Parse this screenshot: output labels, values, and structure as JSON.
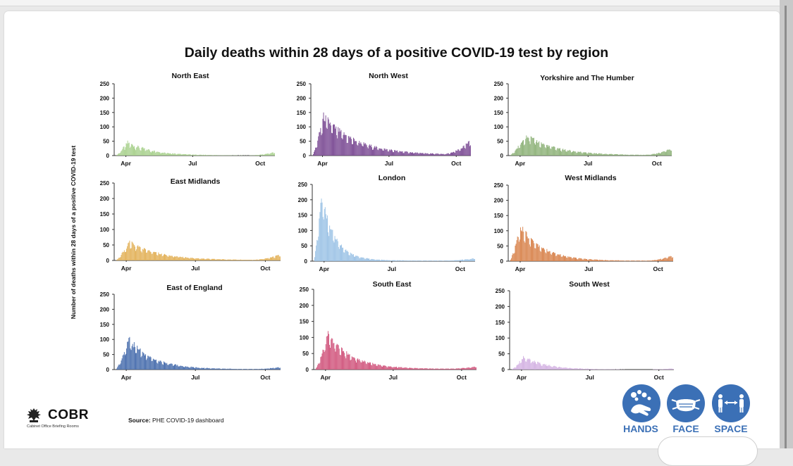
{
  "title": "Daily deaths within 28 days of a positive COVID-19 test by region",
  "ylabel": "Number of deaths within 28 days of a positive COVID-19 test",
  "source_label": "Source:",
  "source_text": "PHE COVID-19 dashboard",
  "logo": {
    "name": "COBR",
    "subtitle": "Cabinet Office Briefing Rooms"
  },
  "badges": [
    {
      "label": "HANDS",
      "icon": "hands-washing-icon"
    },
    {
      "label": "FACE",
      "icon": "face-mask-icon"
    },
    {
      "label": "SPACE",
      "icon": "distance-icon"
    }
  ],
  "colors": {
    "badge": "#3b70b6"
  },
  "chart_data": [
    {
      "type": "bar",
      "title": "North East",
      "color": "#a9d18e",
      "ylim": [
        0,
        250
      ],
      "yticks": [
        0,
        50,
        100,
        150,
        200,
        250
      ],
      "xticks": [
        "Apr",
        "Jul",
        "Oct"
      ],
      "x_range": [
        "2020-03-18",
        "2020-10-20"
      ],
      "shape": {
        "peak1": 45,
        "peak_day": 16,
        "decay_days": 35,
        "tail": 0,
        "wave2": 12,
        "noise": 0.35
      }
    },
    {
      "type": "bar",
      "title": "North West",
      "color": "#7b4b94",
      "ylim": [
        0,
        250
      ],
      "yticks": [
        0,
        50,
        100,
        150,
        200,
        250
      ],
      "xticks": [
        "Apr",
        "Jul",
        "Oct"
      ],
      "x_range": [
        "2020-03-18",
        "2020-10-20"
      ],
      "shape": {
        "peak1": 135,
        "peak_day": 15,
        "decay_days": 45,
        "tail": 2,
        "wave2": 50,
        "noise": 0.25
      }
    },
    {
      "type": "bar",
      "title": "Yorkshire and The Humber",
      "color": "#8fb37a",
      "ylim": [
        0,
        250
      ],
      "yticks": [
        0,
        50,
        100,
        150,
        200,
        250
      ],
      "xticks": [
        "Apr",
        "Jul",
        "Oct"
      ],
      "x_range": [
        "2020-03-18",
        "2020-10-20"
      ],
      "shape": {
        "peak1": 70,
        "peak_day": 22,
        "decay_days": 40,
        "tail": 1,
        "wave2": 25,
        "noise": 0.25
      }
    },
    {
      "type": "bar",
      "title": "East Midlands",
      "color": "#e3b25a",
      "ylim": [
        0,
        250
      ],
      "yticks": [
        0,
        50,
        100,
        150,
        200,
        250
      ],
      "xticks": [
        "Apr",
        "Jul",
        "Oct"
      ],
      "x_range": [
        "2020-03-18",
        "2020-10-20"
      ],
      "shape": {
        "peak1": 58,
        "peak_day": 18,
        "decay_days": 40,
        "tail": 1,
        "wave2": 18,
        "noise": 0.25
      }
    },
    {
      "type": "bar",
      "title": "London",
      "color": "#9dc3e6",
      "ylim": [
        0,
        250
      ],
      "yticks": [
        0,
        50,
        100,
        150,
        200,
        250
      ],
      "xticks": [
        "Apr",
        "Jul",
        "Oct"
      ],
      "x_range": [
        "2020-03-18",
        "2020-10-20"
      ],
      "shape": {
        "peak1": 215,
        "peak_day": 10,
        "decay_days": 18,
        "tail": 2,
        "wave2": 8,
        "noise": 0.15
      }
    },
    {
      "type": "bar",
      "title": "West Midlands",
      "color": "#d9854f",
      "ylim": [
        0,
        250
      ],
      "yticks": [
        0,
        50,
        100,
        150,
        200,
        250
      ],
      "xticks": [
        "Apr",
        "Jul",
        "Oct"
      ],
      "x_range": [
        "2020-03-18",
        "2020-10-20"
      ],
      "shape": {
        "peak1": 115,
        "peak_day": 14,
        "decay_days": 30,
        "tail": 1,
        "wave2": 18,
        "noise": 0.2
      }
    },
    {
      "type": "bar",
      "title": "East of England",
      "color": "#4a6fae",
      "ylim": [
        0,
        250
      ],
      "yticks": [
        0,
        50,
        100,
        150,
        200,
        250
      ],
      "xticks": [
        "Apr",
        "Jul",
        "Oct"
      ],
      "x_range": [
        "2020-03-18",
        "2020-10-20"
      ],
      "shape": {
        "peak1": 100,
        "peak_day": 17,
        "decay_days": 32,
        "tail": 1,
        "wave2": 7,
        "noise": 0.25
      }
    },
    {
      "type": "bar",
      "title": "South East",
      "color": "#d1577e",
      "ylim": [
        0,
        250
      ],
      "yticks": [
        0,
        50,
        100,
        150,
        200,
        250
      ],
      "xticks": [
        "Apr",
        "Jul",
        "Oct"
      ],
      "x_range": [
        "2020-03-18",
        "2020-10-20"
      ],
      "shape": {
        "peak1": 110,
        "peak_day": 17,
        "decay_days": 32,
        "tail": 2,
        "wave2": 8,
        "noise": 0.2
      }
    },
    {
      "type": "bar",
      "title": "South West",
      "color": "#d4b3e3",
      "ylim": [
        0,
        250
      ],
      "yticks": [
        0,
        50,
        100,
        150,
        200,
        250
      ],
      "xticks": [
        "Apr",
        "Jul",
        "Oct"
      ],
      "x_range": [
        "2020-03-18",
        "2020-10-20"
      ],
      "shape": {
        "peak1": 40,
        "peak_day": 17,
        "decay_days": 30,
        "tail": 0,
        "wave2": 4,
        "noise": 0.3
      }
    }
  ]
}
